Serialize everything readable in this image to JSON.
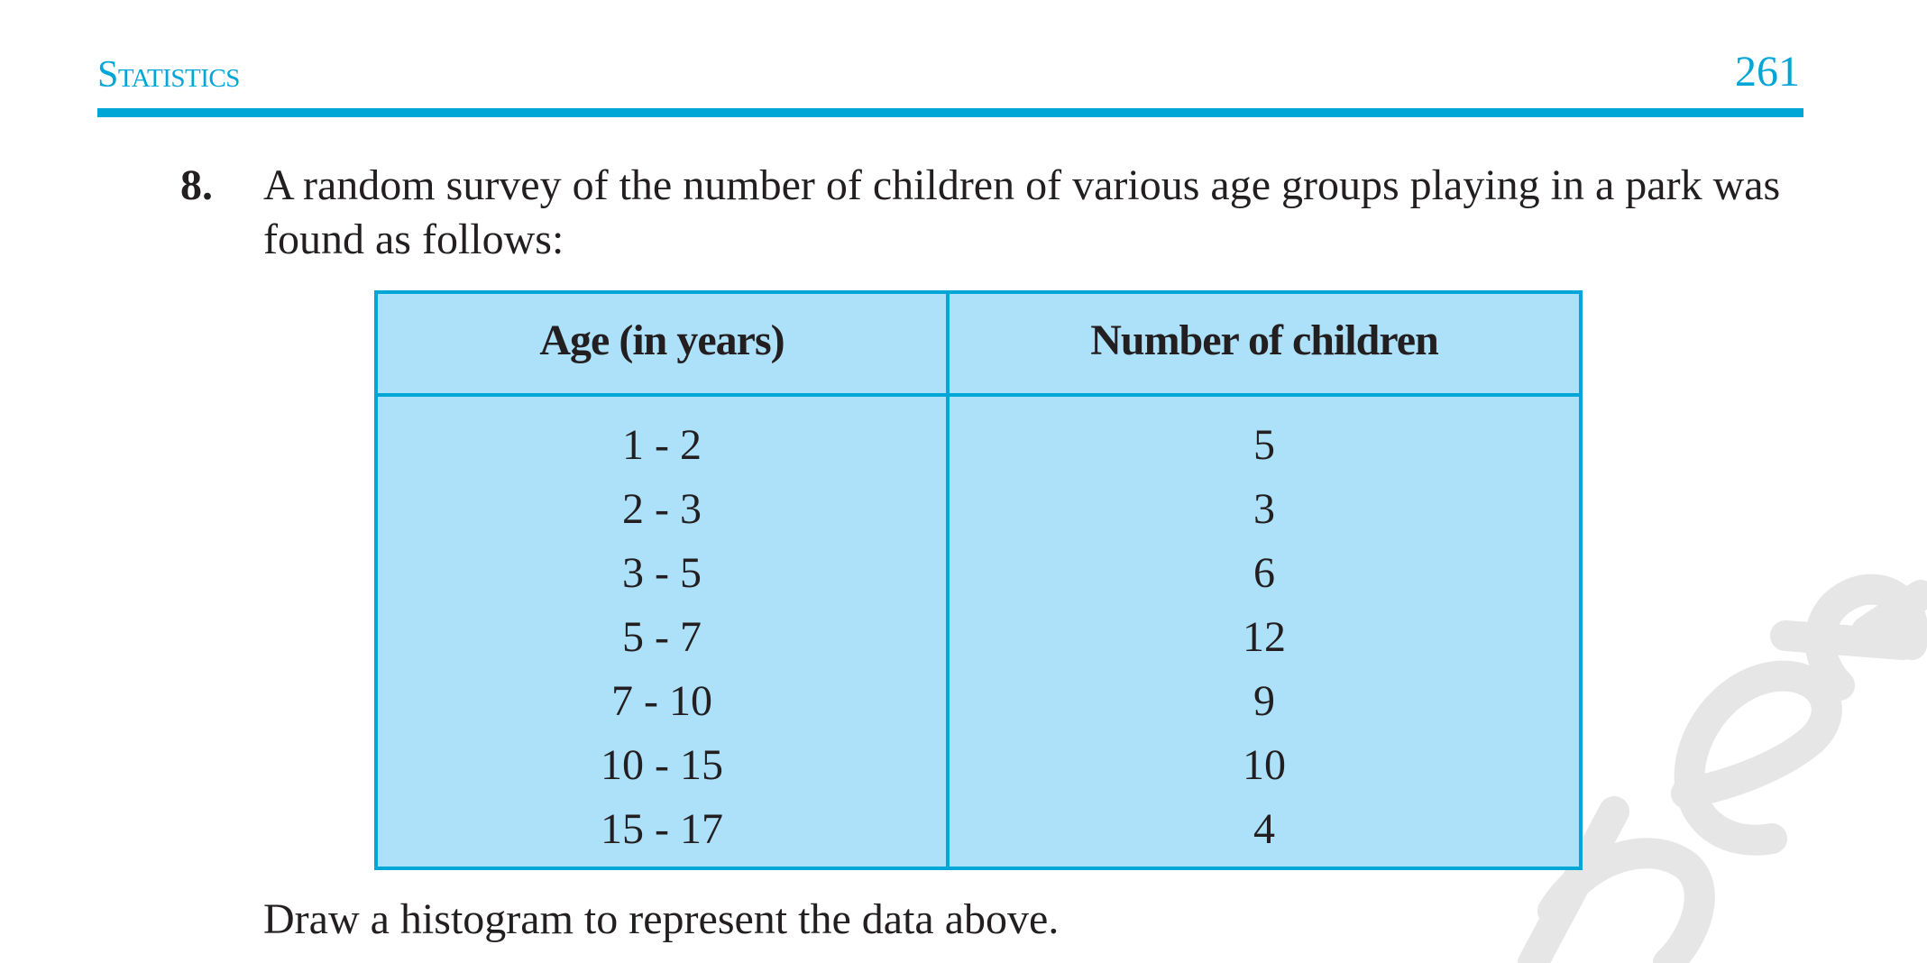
{
  "header": {
    "title": "Statistics",
    "page_number": "261"
  },
  "question": {
    "number": "8.",
    "text": "A random survey of the number of children of various age groups playing in a park was found as follows:"
  },
  "table": {
    "columns": [
      "Age (in years)",
      "Number of children"
    ],
    "rows": [
      {
        "age": "1 - 2",
        "children": "5"
      },
      {
        "age": "2 - 3",
        "children": "3"
      },
      {
        "age": "3 - 5",
        "children": "6"
      },
      {
        "age": "5 - 7",
        "children": "12"
      },
      {
        "age": "7 - 10",
        "children": "9"
      },
      {
        "age": "10 - 15",
        "children": "10"
      },
      {
        "age": "15 - 17",
        "children": "4"
      }
    ]
  },
  "instruction": "Draw a histogram to represent the data above.",
  "colors": {
    "accent": "#00a6d6",
    "table_fill": "#ade0f9",
    "text": "#231f20",
    "watermark": "#e6e6e6"
  }
}
